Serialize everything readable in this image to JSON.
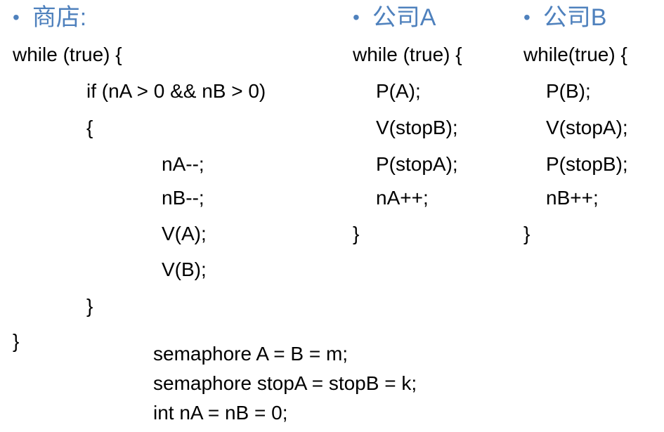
{
  "theme": {
    "heading_color": "#4f81bd",
    "text_color": "#000000"
  },
  "store": {
    "bullet": "•",
    "heading": "商店:",
    "lines": [
      "while (true) {",
      "if (nA > 0 && nB > 0)",
      "{",
      "nA--;",
      "nB--;",
      "V(A);",
      "V(B);",
      "}",
      "}"
    ]
  },
  "company_a": {
    "bullet": "•",
    "heading": "公司A",
    "lines": [
      "while (true) {",
      "P(A);",
      "V(stopB);",
      "P(stopA);",
      "nA++;",
      "}"
    ]
  },
  "company_b": {
    "bullet": "•",
    "heading": "公司B",
    "lines": [
      "while(true) {",
      "P(B);",
      "V(stopA);",
      "P(stopB);",
      "nB++;",
      "}"
    ]
  },
  "declarations": [
    "semaphore A = B = m;",
    "semaphore stopA = stopB = k;",
    "int nA = nB = 0;"
  ]
}
